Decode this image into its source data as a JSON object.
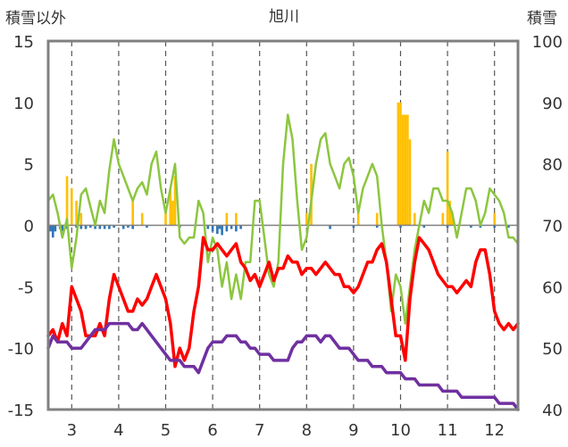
{
  "chart_data": {
    "type": "line",
    "title": "旭川",
    "ylabel_left": "積雪以外",
    "ylabel_right": "積雪",
    "x_ticks": [
      "3",
      "4",
      "5",
      "6",
      "7",
      "8",
      "9",
      "10",
      "11",
      "12"
    ],
    "x_range": [
      2.5,
      12.5
    ],
    "ylim_left": [
      -15,
      15
    ],
    "ylim_right": [
      40,
      100
    ],
    "y_ticks_left": [
      "15",
      "10",
      "5",
      "0",
      "-5",
      "-10",
      "-15"
    ],
    "y_ticks_right": [
      "100",
      "90",
      "80",
      "70",
      "60",
      "50",
      "40"
    ],
    "grid": "vertical dashed at month ticks",
    "colors": {
      "green": "#8cc63f",
      "red": "#ff0000",
      "purple": "#7030a0",
      "orange": "#ffc000",
      "blue": "#2e75b6",
      "axis": "#808080"
    },
    "series": [
      {
        "name": "green line",
        "axis": "left",
        "color": "#8cc63f",
        "x": [
          2.5,
          2.6,
          2.7,
          2.8,
          2.9,
          3.0,
          3.1,
          3.2,
          3.3,
          3.4,
          3.5,
          3.6,
          3.7,
          3.8,
          3.9,
          4.0,
          4.1,
          4.2,
          4.3,
          4.4,
          4.5,
          4.6,
          4.7,
          4.8,
          4.9,
          5.0,
          5.1,
          5.2,
          5.3,
          5.4,
          5.5,
          5.6,
          5.7,
          5.8,
          5.9,
          6.0,
          6.1,
          6.2,
          6.3,
          6.4,
          6.5,
          6.6,
          6.7,
          6.8,
          6.9,
          7.0,
          7.1,
          7.2,
          7.3,
          7.4,
          7.5,
          7.6,
          7.7,
          7.8,
          7.9,
          8.0,
          8.1,
          8.2,
          8.3,
          8.4,
          8.5,
          8.6,
          8.7,
          8.8,
          8.9,
          9.0,
          9.1,
          9.2,
          9.3,
          9.4,
          9.5,
          9.6,
          9.7,
          9.8,
          9.9,
          10.0,
          10.1,
          10.2,
          10.3,
          10.4,
          10.5,
          10.6,
          10.7,
          10.8,
          10.9,
          11.0,
          11.1,
          11.2,
          11.3,
          11.4,
          11.5,
          11.6,
          11.7,
          11.8,
          11.9,
          12.0,
          12.1,
          12.2,
          12.3,
          12.4,
          12.5
        ],
        "values": [
          2,
          2.5,
          1,
          -1,
          0.5,
          -3.5,
          -1,
          2.5,
          3,
          1.5,
          0,
          2,
          1,
          4.5,
          7,
          5,
          4,
          3,
          2,
          3,
          3.5,
          2.5,
          5,
          6,
          3,
          1,
          3,
          5,
          -1,
          -1.5,
          -1,
          -1,
          2,
          1,
          -3,
          -1,
          -2,
          -5,
          -3,
          -6,
          -4,
          -6,
          -3,
          -3,
          2,
          2,
          -1,
          -4,
          -5,
          -3,
          5,
          9,
          7,
          2,
          -2,
          -1,
          2,
          5,
          7,
          7.5,
          5,
          4,
          3,
          5,
          5.5,
          4,
          1,
          3,
          4,
          5,
          4,
          0,
          -3,
          -7,
          -4,
          -5,
          -8,
          -5,
          -2,
          0,
          2,
          1,
          3,
          3,
          2,
          2,
          1,
          -1,
          1,
          3,
          3,
          2,
          0,
          1,
          3,
          2.5,
          2,
          1,
          -1,
          -1,
          -1.5
        ]
      },
      {
        "name": "red line",
        "axis": "left",
        "color": "#ff0000",
        "x": [
          2.5,
          2.6,
          2.7,
          2.8,
          2.9,
          3.0,
          3.1,
          3.2,
          3.3,
          3.4,
          3.5,
          3.6,
          3.7,
          3.8,
          3.9,
          4.0,
          4.1,
          4.2,
          4.3,
          4.4,
          4.5,
          4.6,
          4.7,
          4.8,
          4.9,
          5.0,
          5.1,
          5.2,
          5.3,
          5.4,
          5.5,
          5.6,
          5.7,
          5.8,
          5.9,
          6.0,
          6.1,
          6.2,
          6.3,
          6.4,
          6.5,
          6.6,
          6.7,
          6.8,
          6.9,
          7.0,
          7.1,
          7.2,
          7.3,
          7.4,
          7.5,
          7.6,
          7.7,
          7.8,
          7.9,
          8.0,
          8.1,
          8.2,
          8.3,
          8.4,
          8.5,
          8.6,
          8.7,
          8.8,
          8.9,
          9.0,
          9.1,
          9.2,
          9.3,
          9.4,
          9.5,
          9.6,
          9.7,
          9.8,
          9.9,
          10.0,
          10.1,
          10.2,
          10.3,
          10.4,
          10.5,
          10.6,
          10.7,
          10.8,
          10.9,
          11.0,
          11.1,
          11.2,
          11.3,
          11.4,
          11.5,
          11.6,
          11.7,
          11.8,
          11.9,
          12.0,
          12.1,
          12.2,
          12.3,
          12.4,
          12.5
        ],
        "values": [
          -9,
          -8.5,
          -9.5,
          -8,
          -9,
          -5,
          -6,
          -7,
          -9,
          -9,
          -9,
          -8,
          -9,
          -6,
          -4,
          -5,
          -6,
          -7,
          -7,
          -6,
          -6.5,
          -6,
          -5,
          -4,
          -5,
          -6,
          -8,
          -11.5,
          -10,
          -11,
          -10,
          -7,
          -5,
          -1,
          -2,
          -2,
          -1.5,
          -2,
          -2.5,
          -2,
          -1.5,
          -3,
          -3.5,
          -4.5,
          -4,
          -5,
          -4,
          -3,
          -4.5,
          -3.5,
          -3.5,
          -2.5,
          -3,
          -3,
          -4,
          -3.5,
          -3.5,
          -4,
          -3.5,
          -3,
          -3.5,
          -4,
          -4,
          -5,
          -5,
          -5.5,
          -5,
          -4,
          -3,
          -3,
          -2,
          -1.5,
          -3,
          -6,
          -9,
          -9,
          -11,
          -6,
          -3,
          -1,
          -1.5,
          -2,
          -3,
          -4,
          -4.5,
          -5,
          -5,
          -5.5,
          -5,
          -4.5,
          -5,
          -3,
          -2,
          -2,
          -4,
          -7,
          -8,
          -8.5,
          -8,
          -8.5,
          -8
        ]
      },
      {
        "name": "purple line",
        "axis": "left",
        "color": "#7030a0",
        "x": [
          2.5,
          2.6,
          2.7,
          2.8,
          2.9,
          3.0,
          3.1,
          3.2,
          3.3,
          3.4,
          3.5,
          3.6,
          3.7,
          3.8,
          3.9,
          4.0,
          4.1,
          4.2,
          4.3,
          4.4,
          4.5,
          4.6,
          4.7,
          4.8,
          4.9,
          5.0,
          5.1,
          5.2,
          5.3,
          5.4,
          5.5,
          5.6,
          5.7,
          5.8,
          5.9,
          6.0,
          6.1,
          6.2,
          6.3,
          6.4,
          6.5,
          6.6,
          6.7,
          6.8,
          6.9,
          7.0,
          7.1,
          7.2,
          7.3,
          7.4,
          7.5,
          7.6,
          7.7,
          7.8,
          7.9,
          8.0,
          8.1,
          8.2,
          8.3,
          8.4,
          8.5,
          8.6,
          8.7,
          8.8,
          8.9,
          9.0,
          9.1,
          9.2,
          9.3,
          9.4,
          9.5,
          9.6,
          9.7,
          9.8,
          9.9,
          10.0,
          10.1,
          10.2,
          10.3,
          10.4,
          10.5,
          10.6,
          10.7,
          10.8,
          10.9,
          11.0,
          11.1,
          11.2,
          11.3,
          11.4,
          11.5,
          11.6,
          11.7,
          11.8,
          11.9,
          12.0,
          12.1,
          12.2,
          12.3,
          12.4,
          12.5
        ],
        "values": [
          -10,
          -9,
          -9.5,
          -9.5,
          -9.5,
          -10,
          -10,
          -10,
          -9.5,
          -9,
          -8.5,
          -8.5,
          -8.5,
          -8,
          -8,
          -8,
          -8,
          -8,
          -8.5,
          -8.5,
          -8,
          -8.5,
          -9,
          -9.5,
          -10,
          -10.5,
          -11,
          -11,
          -11,
          -11.5,
          -11.5,
          -11.5,
          -12,
          -11,
          -10,
          -9.5,
          -9.5,
          -9.5,
          -9,
          -9,
          -9,
          -9.5,
          -9.5,
          -10,
          -10,
          -10.5,
          -10.5,
          -10.5,
          -11,
          -11,
          -11,
          -11,
          -10,
          -9.5,
          -9.5,
          -9,
          -9,
          -9,
          -9.5,
          -9,
          -9,
          -9.5,
          -10,
          -10,
          -10,
          -10.5,
          -11,
          -11,
          -11,
          -11.5,
          -11.5,
          -11.5,
          -12,
          -12,
          -12,
          -12,
          -12.5,
          -12.5,
          -12.5,
          -13,
          -13,
          -13,
          -13,
          -13,
          -13.5,
          -13.5,
          -13.5,
          -13.5,
          -14,
          -14,
          -14,
          -14,
          -14,
          -14,
          -14,
          -14,
          -14.5,
          -14.5,
          -14.5,
          -14.5,
          -15
        ]
      }
    ],
    "bars": [
      {
        "name": "orange bars (precipitation)",
        "axis": "left",
        "color": "#ffc000",
        "x": [
          2.9,
          3.0,
          3.1,
          3.2,
          4.3,
          4.5,
          5.0,
          5.1,
          5.15,
          5.2,
          6.3,
          6.5,
          8.0,
          8.1,
          9.1,
          9.5,
          9.95,
          10.0,
          10.05,
          10.1,
          10.15,
          10.2,
          10.3,
          10.9,
          11.0,
          11.05,
          11.1,
          12.0
        ],
        "values": [
          4,
          3,
          2,
          1,
          2,
          1,
          1,
          3,
          2,
          4,
          1,
          1,
          1,
          5,
          1,
          1,
          10,
          10,
          9,
          9,
          9,
          7,
          1,
          1,
          6,
          2,
          1,
          1
        ]
      },
      {
        "name": "blue bars",
        "axis": "left",
        "color": "#2e75b6",
        "x": [
          2.55,
          2.6,
          2.65,
          2.75,
          2.8,
          2.9,
          3.1,
          3.2,
          3.3,
          3.4,
          3.5,
          3.6,
          3.7,
          3.8,
          3.9,
          4.1,
          4.2,
          4.3,
          4.6,
          5.3,
          5.9,
          6.0,
          6.1,
          6.15,
          6.2,
          6.3,
          6.4,
          6.5,
          6.6,
          8.5,
          9.0,
          9.5,
          10.0,
          10.5,
          11.0,
          11.5,
          11.7,
          12.0,
          12.3
        ],
        "values": [
          -0.5,
          -1,
          -0.5,
          -0.3,
          -0.5,
          -0.3,
          -0.2,
          -0.3,
          -0.3,
          -0.2,
          -0.3,
          -0.3,
          -0.3,
          -0.3,
          -0.2,
          -0.3,
          -0.2,
          -0.3,
          -0.2,
          -0.2,
          -0.3,
          -0.5,
          -0.7,
          -0.3,
          -0.8,
          -0.5,
          -0.3,
          -0.5,
          -0.3,
          -0.3,
          -0.2,
          -0.2,
          -0.2,
          -0.2,
          -0.2,
          -0.2,
          -0.2,
          -0.2,
          -0.2
        ]
      }
    ]
  }
}
